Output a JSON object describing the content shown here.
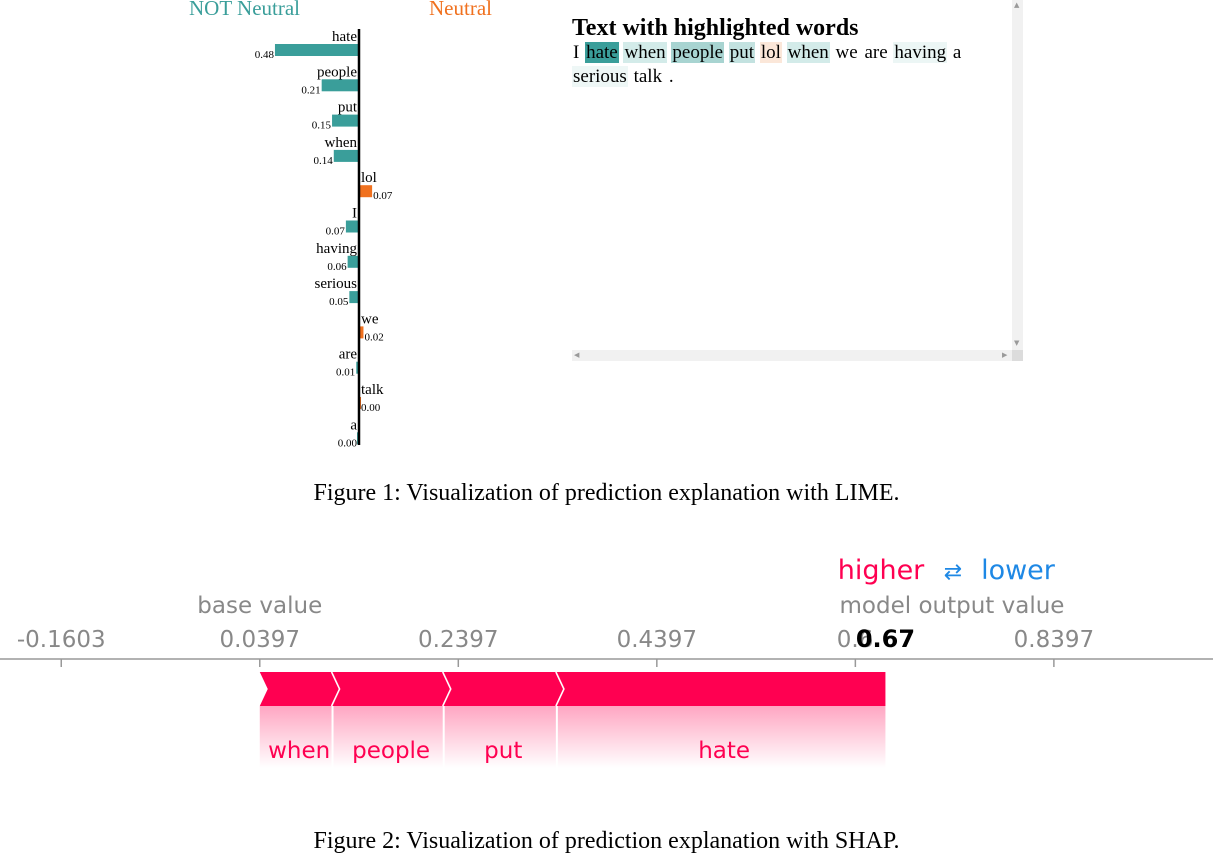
{
  "lime": {
    "class_negative": "NOT Neutral",
    "class_positive": "Neutral",
    "colors": {
      "negative": "#3a9e9a",
      "positive": "#f0711f"
    },
    "features": [
      {
        "word": "hate",
        "value": 0.48,
        "label": "0.48",
        "side": "negative"
      },
      {
        "word": "people",
        "value": 0.21,
        "label": "0.21",
        "side": "negative"
      },
      {
        "word": "put",
        "value": 0.15,
        "label": "0.15",
        "side": "negative"
      },
      {
        "word": "when",
        "value": 0.14,
        "label": "0.14",
        "side": "negative"
      },
      {
        "word": "lol",
        "value": 0.07,
        "label": "0.07",
        "side": "positive"
      },
      {
        "word": "I",
        "value": 0.07,
        "label": "0.07",
        "side": "negative"
      },
      {
        "word": "having",
        "value": 0.06,
        "label": "0.06",
        "side": "negative"
      },
      {
        "word": "serious",
        "value": 0.05,
        "label": "0.05",
        "side": "negative"
      },
      {
        "word": "we",
        "value": 0.02,
        "label": "0.02",
        "side": "positive"
      },
      {
        "word": "are",
        "value": 0.01,
        "label": "0.01",
        "side": "negative"
      },
      {
        "word": "talk",
        "value": 0.0,
        "label": "0.00",
        "side": "positive"
      },
      {
        "word": "a",
        "value": 0.0,
        "label": "0.00",
        "side": "negative"
      }
    ],
    "highlight_title": "Text with highlighted words",
    "highlight_tokens": [
      {
        "text": "I",
        "bg": "#ffffff"
      },
      {
        "text": "hate",
        "bg": "#3a9e9a"
      },
      {
        "text": "when",
        "bg": "#d3ebe9"
      },
      {
        "text": "people",
        "bg": "#a8d4d1"
      },
      {
        "text": "put",
        "bg": "#c3e2e0"
      },
      {
        "text": "lol",
        "bg": "#fbe7d9"
      },
      {
        "text": "when",
        "bg": "#d3ebe9"
      },
      {
        "text": "we",
        "bg": "#ffffff"
      },
      {
        "text": "are",
        "bg": "#ffffff"
      },
      {
        "text": "having",
        "bg": "#ecf6f5"
      },
      {
        "text": "a",
        "bg": "#ffffff"
      },
      {
        "text": "serious",
        "bg": "#eef7f6"
      },
      {
        "text": "talk",
        "bg": "#ffffff"
      },
      {
        "text": ".",
        "bg": "#ffffff"
      }
    ]
  },
  "captions": {
    "figure1": "Figure 1: Visualization of prediction explanation with LIME.",
    "figure2": "Figure 2: Visualization of prediction explanation with SHAP."
  },
  "chart_data": {
    "type": "bar",
    "categories": [
      "when",
      "people",
      "put",
      "hate"
    ],
    "base_value": 0.0397,
    "output_value": 0.67,
    "output_label": "0.67",
    "tick_values": [
      -0.1603,
      0.0397,
      0.2397,
      0.4397,
      0.6397,
      0.8397
    ],
    "tick_labels": [
      "-0.1603",
      "0.0397",
      "0.2397",
      "0.4397",
      "0.6",
      "0.8397"
    ],
    "xlim": [
      -0.222,
      1.0
    ],
    "segments": [
      {
        "feature": "when",
        "start": 0.0397,
        "end": 0.113
      },
      {
        "feature": "people",
        "start": 0.113,
        "end": 0.225
      },
      {
        "feature": "put",
        "start": 0.225,
        "end": 0.339
      },
      {
        "feature": "hate",
        "start": 0.339,
        "end": 0.67
      }
    ],
    "legend": {
      "higher": "higher",
      "arrows": "⇄",
      "lower": "lower"
    },
    "base_label": "base value",
    "output_caption": "model output value",
    "colors": {
      "higher": "#ff0051",
      "lower": "#1e88e5",
      "axis": "#888888"
    }
  }
}
